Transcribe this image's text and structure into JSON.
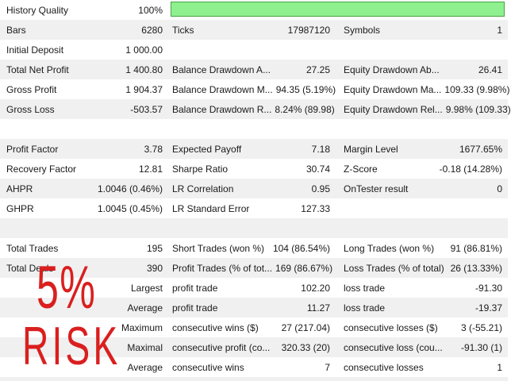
{
  "app": "strategy-tester-backtest-report",
  "colors": {
    "row_stripe": "#f0f0f0",
    "text": "#1a1a1a",
    "history_bar_fill": "#8ef08e",
    "history_bar_border": "#46a546",
    "watermark_red": "#da1f1f"
  },
  "history_quality_bar": {
    "name": "history-quality-progress",
    "percent": "100%",
    "fill": "#8ef08e"
  },
  "watermark": {
    "line1": "5%",
    "line2": "RISK",
    "color": "#da1f1f"
  },
  "report": {
    "rows": [
      {
        "l1": "History Quality",
        "v1": "100%",
        "l2": "",
        "v2": "",
        "l3": "",
        "v3": "",
        "bar": true
      },
      {
        "l1": "Bars",
        "v1": "6280",
        "l2": "Ticks",
        "v2": "17987120",
        "l3": "Symbols",
        "v3": "1"
      },
      {
        "l1": "Initial Deposit",
        "v1": "1 000.00",
        "l2": "",
        "v2": "",
        "l3": "",
        "v3": ""
      },
      {
        "l1": "Total Net Profit",
        "v1": "1 400.80",
        "l2": "Balance Drawdown A...",
        "v2": "27.25",
        "l3": "Equity Drawdown Ab...",
        "v3": "26.41"
      },
      {
        "l1": "Gross Profit",
        "v1": "1 904.37",
        "l2": "Balance Drawdown M...",
        "v2": "94.35 (5.19%)",
        "l3": "Equity Drawdown Ma...",
        "v3": "109.33 (9.98%)"
      },
      {
        "l1": "Gross Loss",
        "v1": "-503.57",
        "l2": "Balance Drawdown R...",
        "v2": "8.24% (89.98)",
        "l3": "Equity Drawdown Rel...",
        "v3": "9.98% (109.33)"
      },
      {
        "l1": "",
        "v1": "",
        "l2": "",
        "v2": "",
        "l3": "",
        "v3": "",
        "blank": true
      },
      {
        "l1": "Profit Factor",
        "v1": "3.78",
        "l2": "Expected Payoff",
        "v2": "7.18",
        "l3": "Margin Level",
        "v3": "1677.65%"
      },
      {
        "l1": "Recovery Factor",
        "v1": "12.81",
        "l2": "Sharpe Ratio",
        "v2": "30.74",
        "l3": "Z-Score",
        "v3": "-0.18 (14.28%)"
      },
      {
        "l1": "AHPR",
        "v1": "1.0046 (0.46%)",
        "l2": "LR Correlation",
        "v2": "0.95",
        "l3": "OnTester result",
        "v3": "0"
      },
      {
        "l1": "GHPR",
        "v1": "1.0045 (0.45%)",
        "l2": "LR Standard Error",
        "v2": "127.33",
        "l3": "",
        "v3": ""
      },
      {
        "l1": "",
        "v1": "",
        "l2": "",
        "v2": "",
        "l3": "",
        "v3": "",
        "blank": true
      },
      {
        "l1": "Total Trades",
        "v1": "195",
        "l2": "Short Trades (won %)",
        "v2": "104 (86.54%)",
        "l3": "Long Trades (won %)",
        "v3": "91 (86.81%)"
      },
      {
        "l1": "Total Deals",
        "v1": "390",
        "l2": "Profit Trades (% of tot...",
        "v2": "169 (86.67%)",
        "l3": "Loss Trades (% of total)",
        "v3": "26 (13.33%)"
      },
      {
        "l1": "",
        "v1": "Largest",
        "l2": "profit trade",
        "v2": "102.20",
        "l3": "loss trade",
        "v3": "-91.30"
      },
      {
        "l1": "",
        "v1": "Average",
        "l2": "profit trade",
        "v2": "11.27",
        "l3": "loss trade",
        "v3": "-19.37"
      },
      {
        "l1": "",
        "v1": "Maximum",
        "l2": "consecutive wins ($)",
        "v2": "27 (217.04)",
        "l3": "consecutive losses ($)",
        "v3": "3 (-55.21)"
      },
      {
        "l1": "",
        "v1": "Maximal",
        "l2": "consecutive profit (co...",
        "v2": "320.33 (20)",
        "l3": "consecutive loss (cou...",
        "v3": "-91.30 (1)"
      },
      {
        "l1": "",
        "v1": "Average",
        "l2": "consecutive wins",
        "v2": "7",
        "l3": "consecutive losses",
        "v3": "1"
      }
    ]
  }
}
